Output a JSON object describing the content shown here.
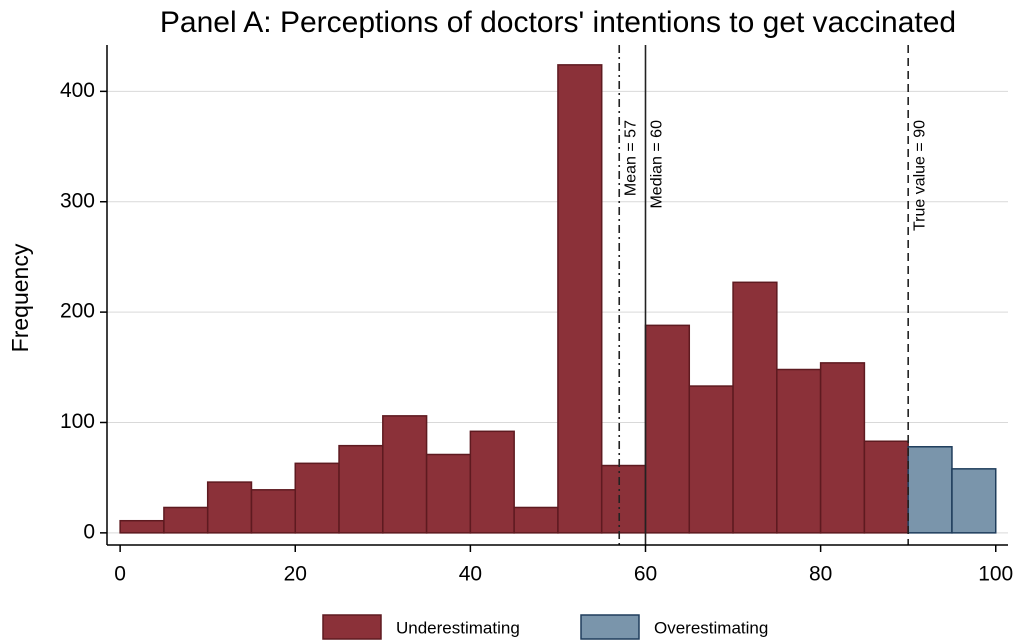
{
  "chart_data": {
    "type": "histogram",
    "title": "Panel A: Perceptions of doctors' intentions to get vaccinated",
    "y_label": "Frequency",
    "bins": [
      0,
      5,
      10,
      15,
      20,
      25,
      30,
      35,
      40,
      45,
      50,
      55,
      60,
      65,
      70,
      75,
      80,
      85,
      90,
      95,
      100
    ],
    "series": [
      {
        "name": "Underestimating",
        "color": "#8b3139",
        "edge": "#5e1a20",
        "values": [
          11,
          23,
          46,
          39,
          63,
          79,
          106,
          71,
          92,
          23,
          424,
          61,
          188,
          133,
          227,
          148,
          154,
          83,
          null,
          null
        ]
      },
      {
        "name": "Overestimating",
        "color": "#7a95ab",
        "edge": "#1f3d5c",
        "values": [
          null,
          null,
          null,
          null,
          null,
          null,
          null,
          null,
          null,
          null,
          null,
          null,
          null,
          null,
          null,
          null,
          null,
          null,
          78,
          58
        ]
      }
    ],
    "reference_lines": [
      {
        "value": 57,
        "label": "Mean = 57",
        "dash": "8,4,2,4"
      },
      {
        "value": 60,
        "label": "Median = 60",
        "dash": "none"
      },
      {
        "value": 90,
        "label": "True value = 90",
        "dash": "8,5"
      }
    ],
    "xlim": [
      -1.5,
      101.4
    ],
    "ylim": [
      -11,
      442
    ],
    "xticks": [
      0,
      20,
      40,
      60,
      80,
      100
    ],
    "yticks": [
      0,
      100,
      200,
      300,
      400
    ],
    "grid": true,
    "legend": "bottom"
  }
}
